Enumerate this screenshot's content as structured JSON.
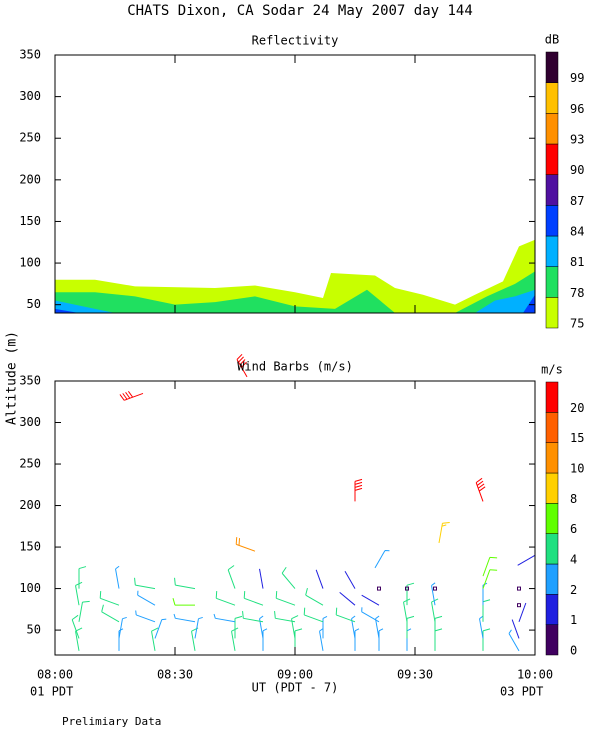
{
  "title": "CHATS Dixon, CA  Sodar  24 May 2007  day 144",
  "ylabel": "Altitude (m)",
  "xlabel": "UT  (PDT - 7)",
  "left_note": "01 PDT",
  "right_note": "03 PDT",
  "footer": "Prelimiary Data",
  "chart_data": [
    {
      "type": "contour",
      "title": "Reflectivity",
      "xlim": [
        "08:00",
        "10:00"
      ],
      "xticks": [
        "08:00",
        "08:30",
        "09:00",
        "09:30",
        "10:00"
      ],
      "ylim": [
        40,
        350
      ],
      "yticks": [
        50,
        100,
        150,
        200,
        250,
        300,
        350
      ],
      "colorbar": {
        "label": "dB",
        "ticks": [
          75,
          78,
          81,
          84,
          87,
          90,
          93,
          96,
          99
        ],
        "colors": [
          "#c8ff00",
          "#20e060",
          "#00b0ff",
          "#0040ff",
          "#5010a0",
          "#ff0000",
          "#ff9000",
          "#ffc000",
          "#300030"
        ]
      },
      "series": [
        {
          "color": "#c8ff00",
          "x": [
            "08:00",
            "08:10",
            "08:20",
            "08:40",
            "08:50",
            "09:00",
            "09:07",
            "09:09",
            "09:20",
            "09:25",
            "09:32",
            "09:40",
            "09:45",
            "09:52",
            "09:56",
            "10:00"
          ],
          "values": [
            80,
            80,
            72,
            70,
            73,
            65,
            58,
            88,
            85,
            70,
            62,
            50,
            62,
            78,
            120,
            128
          ]
        },
        {
          "color": "#20e060",
          "x": [
            "08:00",
            "08:10",
            "08:20",
            "08:30",
            "08:40",
            "08:50",
            "09:00",
            "09:10",
            "09:18",
            "09:25",
            "09:40",
            "09:48",
            "09:55",
            "10:00"
          ],
          "values": [
            65,
            65,
            60,
            50,
            53,
            60,
            48,
            45,
            68,
            40,
            40,
            60,
            75,
            90
          ]
        },
        {
          "color": "#00b0ff",
          "x": [
            "08:00",
            "08:10",
            "08:15",
            "09:45",
            "09:50",
            "09:55",
            "10:00"
          ],
          "values": [
            55,
            45,
            40,
            40,
            55,
            60,
            68
          ]
        },
        {
          "color": "#0040ff",
          "x": [
            "08:00",
            "08:06",
            "09:56",
            "09:57",
            "10:00"
          ],
          "values": [
            45,
            40,
            null,
            40,
            62
          ]
        }
      ]
    },
    {
      "type": "barbs",
      "title": "Wind Barbs (m/s)",
      "xlim": [
        "08:00",
        "10:00"
      ],
      "xticks": [
        "08:00",
        "08:30",
        "09:00",
        "09:30",
        "10:00"
      ],
      "ylim": [
        20,
        350
      ],
      "yticks": [
        50,
        100,
        150,
        200,
        250,
        300,
        350
      ],
      "colorbar": {
        "label": "m/s",
        "ticks": [
          0,
          1,
          2,
          4,
          6,
          8,
          10,
          15,
          20
        ],
        "colors": [
          "#400060",
          "#2020e0",
          "#20a0ff",
          "#20e080",
          "#60ff00",
          "#ffd000",
          "#ff9000",
          "#ff6000",
          "#ff0000"
        ]
      },
      "x": [
        "08:06",
        "08:06",
        "08:06",
        "08:06",
        "08:06",
        "08:16",
        "08:16",
        "08:16",
        "08:16",
        "08:16",
        "08:25",
        "08:25",
        "08:25",
        "08:25",
        "08:25",
        "08:35",
        "08:35",
        "08:35",
        "08:35",
        "08:35",
        "08:45",
        "08:45",
        "08:45",
        "08:45",
        "08:45",
        "08:52",
        "08:52",
        "08:52",
        "08:52",
        "08:52",
        "09:00",
        "09:00",
        "09:00",
        "09:00",
        "09:00",
        "09:07",
        "09:07",
        "09:07",
        "09:07",
        "09:07",
        "09:15",
        "09:15",
        "09:15",
        "09:15",
        "09:15",
        "09:21",
        "09:21",
        "09:21",
        "09:21",
        "09:21",
        "09:28",
        "09:28",
        "09:28",
        "09:28",
        "09:28",
        "09:35",
        "09:35",
        "09:35",
        "09:35",
        "09:35",
        "09:47",
        "09:47",
        "09:47",
        "09:47",
        "09:47",
        "09:56",
        "09:56",
        "09:56",
        "09:56",
        "09:56",
        "08:22",
        "08:48",
        "09:15",
        "09:47",
        "08:50",
        "09:36",
        "09:20",
        "09:47",
        "10:00"
      ],
      "y": [
        25,
        40,
        60,
        80,
        100,
        25,
        40,
        60,
        80,
        100,
        25,
        40,
        60,
        80,
        100,
        25,
        40,
        60,
        80,
        100,
        25,
        40,
        60,
        80,
        100,
        25,
        40,
        60,
        80,
        100,
        25,
        40,
        60,
        80,
        100,
        25,
        40,
        60,
        80,
        100,
        25,
        40,
        60,
        80,
        100,
        25,
        40,
        60,
        80,
        100,
        25,
        40,
        60,
        80,
        100,
        25,
        40,
        60,
        80,
        100,
        25,
        40,
        60,
        80,
        100,
        25,
        40,
        60,
        80,
        100,
        335,
        355,
        205,
        205,
        145,
        155,
        125,
        115,
        140
      ],
      "speed": [
        5,
        5,
        5,
        5,
        5,
        3,
        3,
        5,
        5,
        3,
        5,
        3,
        3,
        3,
        5,
        5,
        3,
        3,
        7,
        5,
        5,
        5,
        3,
        5,
        5,
        3,
        3,
        5,
        5,
        1.5,
        5,
        5,
        5,
        5,
        5,
        3,
        3,
        5,
        5,
        1.5,
        3,
        3,
        5,
        1.5,
        1.5,
        3,
        3,
        3,
        1.5,
        0.5,
        3,
        5,
        5,
        5,
        0.5,
        5,
        5,
        5,
        3,
        0.5,
        5,
        3,
        5,
        3,
        7,
        3,
        1.5,
        1.5,
        0.5,
        0.5,
        20,
        20,
        20,
        20,
        10,
        8,
        3,
        6,
        1.5
      ],
      "direction": [
        350,
        340,
        10,
        350,
        0,
        0,
        10,
        300,
        290,
        350,
        350,
        20,
        290,
        300,
        280,
        350,
        10,
        280,
        270,
        280,
        350,
        0,
        280,
        290,
        340,
        0,
        350,
        280,
        290,
        350,
        0,
        350,
        280,
        290,
        320,
        350,
        0,
        290,
        300,
        340,
        0,
        350,
        290,
        310,
        330,
        0,
        350,
        300,
        300,
        0,
        0,
        0,
        350,
        0,
        0,
        0,
        0,
        350,
        350,
        0,
        0,
        350,
        0,
        0,
        20,
        330,
        340,
        20,
        0,
        0,
        250,
        330,
        0,
        340,
        290,
        10,
        30,
        20,
        240
      ]
    }
  ]
}
